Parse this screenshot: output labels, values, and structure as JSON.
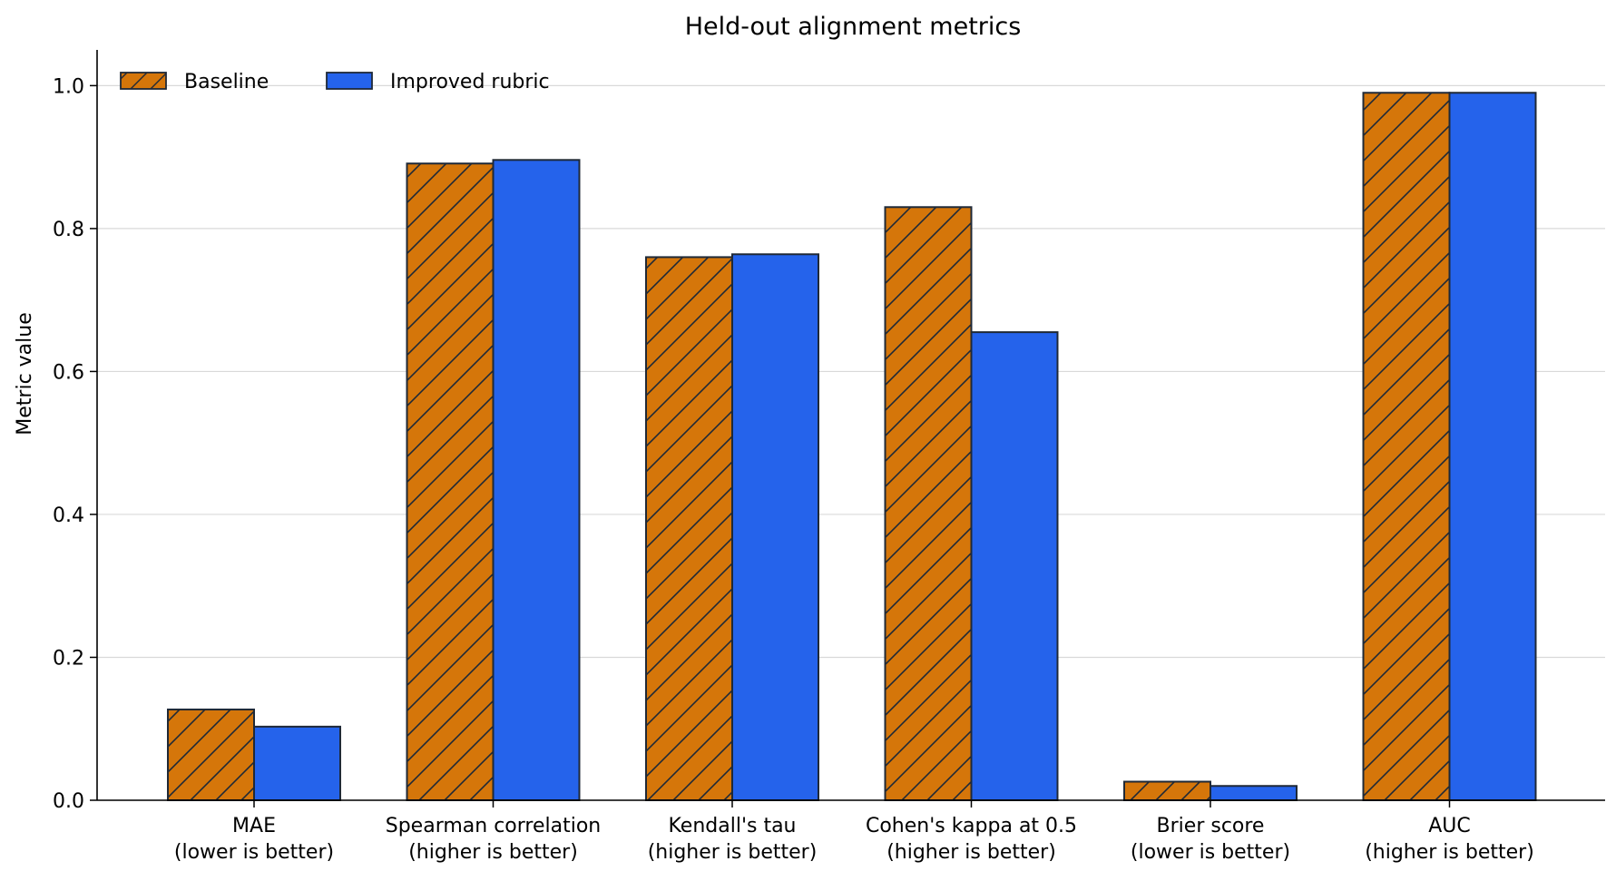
{
  "chart_data": {
    "type": "bar",
    "title": "Held-out alignment metrics",
    "xlabel": "",
    "ylabel": "Metric value",
    "ylim": [
      0,
      1.05
    ],
    "yticks": [
      0.0,
      0.2,
      0.4,
      0.6,
      0.8,
      1.0
    ],
    "ytick_labels": [
      "0.0",
      "0.2",
      "0.4",
      "0.6",
      "0.8",
      "1.0"
    ],
    "grid": "horizontal",
    "legend_position": "top-left",
    "categories": [
      [
        "MAE",
        "(lower is better)"
      ],
      [
        "Spearman correlation",
        "(higher is better)"
      ],
      [
        "Kendall's tau",
        "(higher is better)"
      ],
      [
        "Cohen's kappa at 0.5",
        "(higher is better)"
      ],
      [
        "Brier score",
        "(lower is better)"
      ],
      [
        "AUC",
        "(higher is better)"
      ]
    ],
    "series": [
      {
        "name": "Baseline",
        "color": "#d5760a",
        "hatch": "diagonal",
        "values": [
          0.127,
          0.891,
          0.76,
          0.83,
          0.026,
          0.99
        ]
      },
      {
        "name": "Improved rubric",
        "color": "#2563eb",
        "hatch": "none",
        "values": [
          0.103,
          0.896,
          0.764,
          0.655,
          0.02,
          0.99
        ]
      }
    ]
  }
}
